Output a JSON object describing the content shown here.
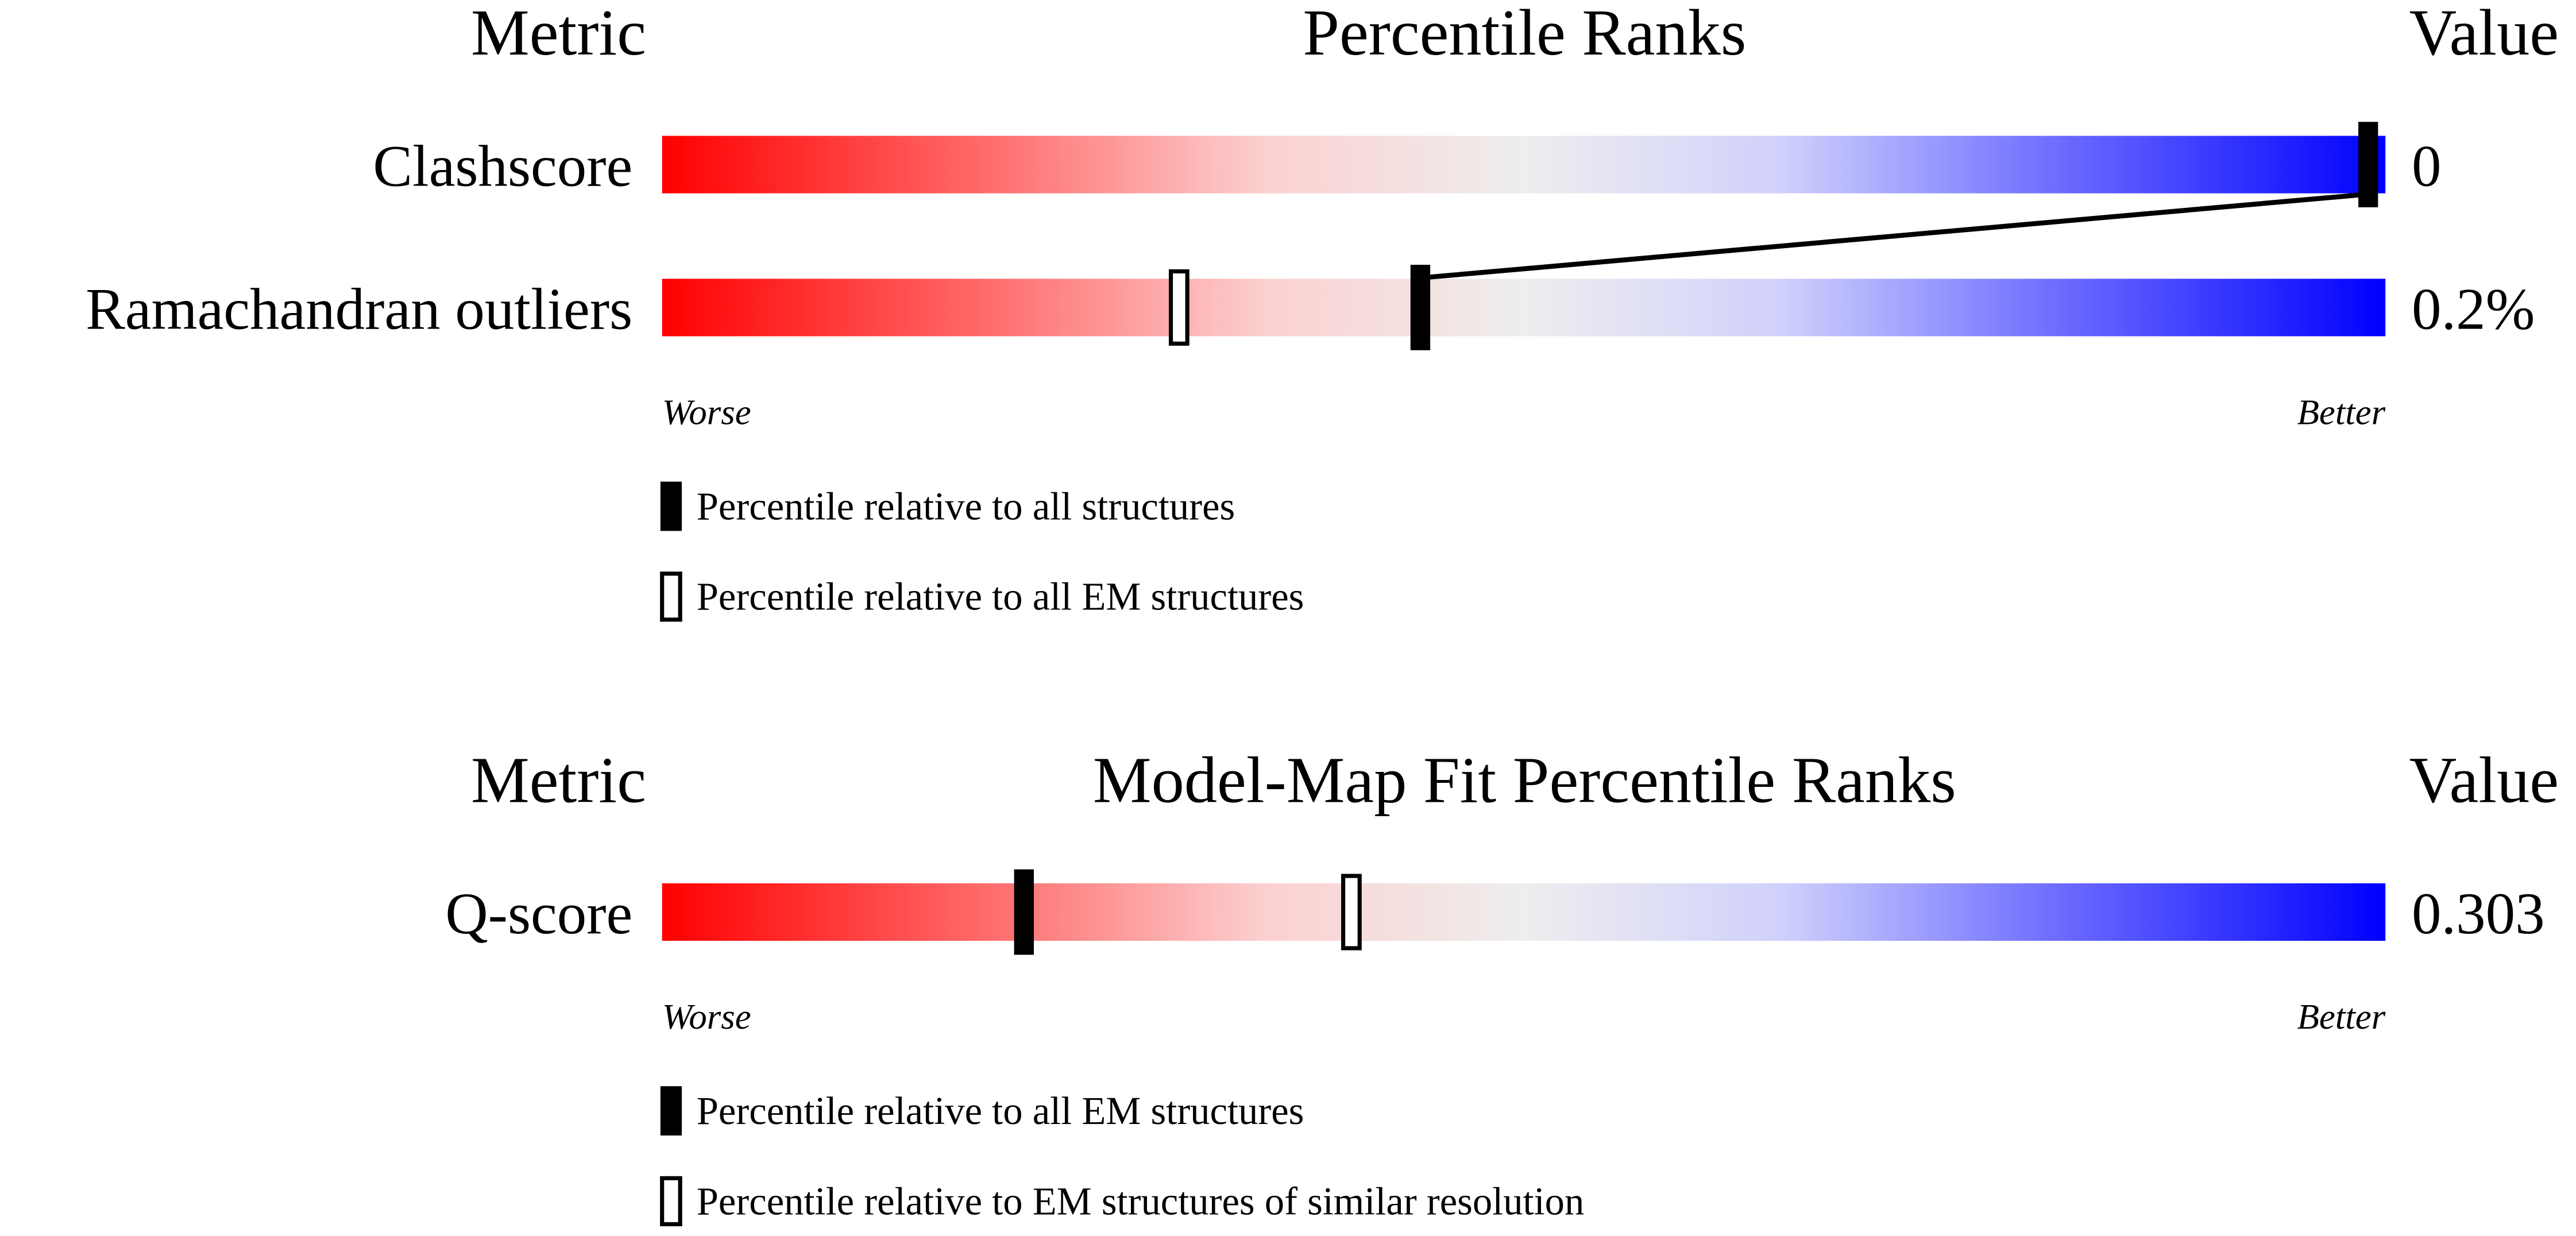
{
  "chart_data": [
    {
      "type": "percentile",
      "header": {
        "metric": "Metric",
        "title": "Percentile Ranks",
        "value": "Value"
      },
      "xlim": [
        0,
        100
      ],
      "rows": [
        {
          "metric": "Clashscore",
          "value": "0",
          "all": 99,
          "em": null
        },
        {
          "metric": "Ramachandran outliers",
          "value": "0.2%",
          "all": 44,
          "em": 30
        }
      ],
      "worse": "Worse",
      "better": "Better",
      "legend": {
        "all": "Percentile relative to all structures",
        "em": "Percentile relative to all EM structures"
      }
    },
    {
      "type": "percentile",
      "header": {
        "metric": "Metric",
        "title": "Model-Map Fit Percentile Ranks",
        "value": "Value"
      },
      "xlim": [
        0,
        100
      ],
      "rows": [
        {
          "metric": "Q-score",
          "value": "0.303",
          "all": 21,
          "em": 40
        }
      ],
      "worse": "Worse",
      "better": "Better",
      "legend": {
        "all": "Percentile relative to all EM structures",
        "em": "Percentile relative to EM structures of similar resolution"
      }
    }
  ]
}
